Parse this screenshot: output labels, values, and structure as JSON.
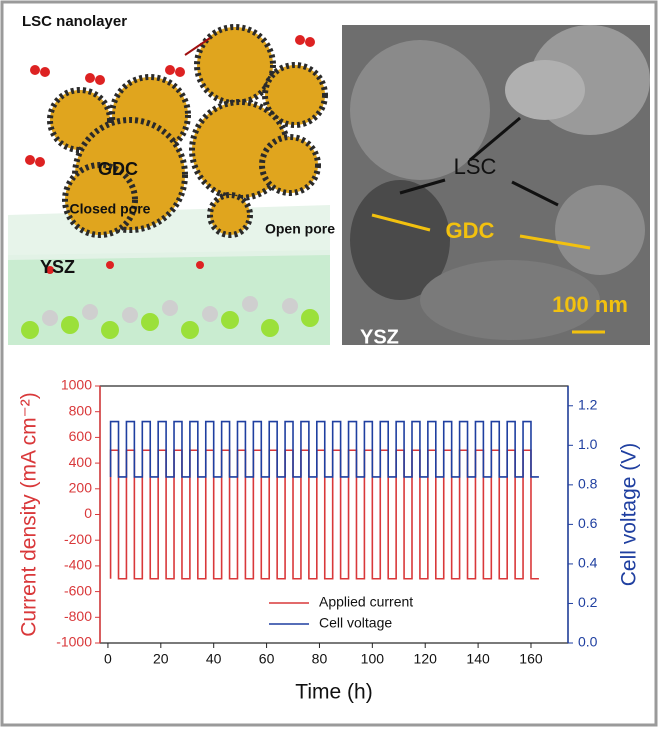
{
  "schematic": {
    "labels": [
      "LSC nanolayer",
      "GDC",
      "Closed pore",
      "Open pore",
      "YSZ"
    ]
  },
  "micrograph": {
    "labels": [
      "LSC",
      "GDC",
      "100 nm",
      "YSZ"
    ]
  },
  "chart_data": {
    "type": "line",
    "xlabel": "Time (h)",
    "ylabel": "Current density (mA cm⁻²)",
    "y2label": "Cell voltage (V)",
    "x": [
      1,
      1,
      4,
      4,
      7,
      7,
      10,
      10,
      13,
      13,
      16,
      16,
      19,
      19,
      22,
      22,
      25,
      25,
      28,
      28,
      31,
      31,
      34,
      34,
      37,
      37,
      40,
      40,
      43,
      43,
      46,
      46,
      49,
      49,
      52,
      52,
      55,
      55,
      58,
      58,
      61,
      61,
      64,
      64,
      67,
      67,
      70,
      70,
      73,
      73,
      76,
      76,
      79,
      79,
      82,
      82,
      85,
      85,
      88,
      88,
      91,
      91,
      94,
      94,
      97,
      97,
      100,
      100,
      103,
      103,
      106,
      106,
      109,
      109,
      112,
      112,
      115,
      115,
      118,
      118,
      121,
      121,
      124,
      124,
      127,
      127,
      130,
      130,
      133,
      133,
      136,
      136,
      139,
      139,
      142,
      142,
      145,
      145,
      148,
      148,
      151,
      151,
      154,
      154,
      157,
      157,
      160,
      160,
      163
    ],
    "series": [
      {
        "name": "Applied current",
        "color": "#d9383a",
        "values": [
          -500,
          500,
          500,
          -500,
          -500,
          500,
          500,
          -500,
          -500,
          500,
          500,
          -500,
          -500,
          500,
          500,
          -500,
          -500,
          500,
          500,
          -500,
          -500,
          500,
          500,
          -500,
          -500,
          500,
          500,
          -500,
          -500,
          500,
          500,
          -500,
          -500,
          500,
          500,
          -500,
          -500,
          500,
          500,
          -500,
          -500,
          500,
          500,
          -500,
          -500,
          500,
          500,
          -500,
          -500,
          500,
          500,
          -500,
          -500,
          500,
          500,
          -500,
          -500,
          500,
          500,
          -500,
          -500,
          500,
          500,
          -500,
          -500,
          500,
          500,
          -500,
          -500,
          500,
          500,
          -500,
          -500,
          500,
          500,
          -500,
          -500,
          500,
          500,
          -500,
          -500,
          500,
          500,
          -500,
          -500,
          500,
          500,
          -500,
          -500,
          500,
          500,
          -500,
          -500,
          500,
          500,
          -500,
          -500,
          500,
          500,
          -500,
          -500,
          500,
          500,
          -500,
          -500,
          500,
          500,
          -500,
          -500
        ]
      },
      {
        "name": "Cell voltage",
        "color": "#1f3fa0",
        "axis": "y2",
        "values": [
          0.84,
          1.12,
          1.12,
          0.84,
          0.84,
          1.12,
          1.12,
          0.84,
          0.84,
          1.12,
          1.12,
          0.84,
          0.84,
          1.12,
          1.12,
          0.84,
          0.84,
          1.12,
          1.12,
          0.84,
          0.84,
          1.12,
          1.12,
          0.84,
          0.84,
          1.12,
          1.12,
          0.84,
          0.84,
          1.12,
          1.12,
          0.84,
          0.84,
          1.12,
          1.12,
          0.84,
          0.84,
          1.12,
          1.12,
          0.84,
          0.84,
          1.12,
          1.12,
          0.84,
          0.84,
          1.12,
          1.12,
          0.84,
          0.84,
          1.12,
          1.12,
          0.84,
          0.84,
          1.12,
          1.12,
          0.84,
          0.84,
          1.12,
          1.12,
          0.84,
          0.84,
          1.12,
          1.12,
          0.84,
          0.84,
          1.12,
          1.12,
          0.84,
          0.84,
          1.12,
          1.12,
          0.84,
          0.84,
          1.12,
          1.12,
          0.84,
          0.84,
          1.12,
          1.12,
          0.84,
          0.84,
          1.12,
          1.12,
          0.84,
          0.84,
          1.12,
          1.12,
          0.84,
          0.84,
          1.12,
          1.12,
          0.84,
          0.84,
          1.12,
          1.12,
          0.84,
          0.84,
          1.12,
          1.12,
          0.84,
          0.84,
          1.12,
          1.12,
          0.84,
          0.84,
          1.12,
          1.12,
          0.84,
          0.84
        ]
      }
    ],
    "xlim": [
      -3,
      174
    ],
    "xticks": [
      0,
      20,
      40,
      60,
      80,
      100,
      120,
      140,
      160
    ],
    "ylim": [
      -1000,
      1000
    ],
    "yticks": [
      -1000,
      -800,
      -600,
      -400,
      -200,
      0,
      200,
      400,
      600,
      800,
      1000
    ],
    "y2lim": [
      0,
      1.3
    ],
    "y2ticks": [
      {
        "value": 0,
        "label": "0.0"
      },
      0.2,
      0.4,
      0.6,
      0.8,
      {
        "value": 1,
        "label": "1.0"
      },
      1.2
    ],
    "legend": "lower center"
  }
}
